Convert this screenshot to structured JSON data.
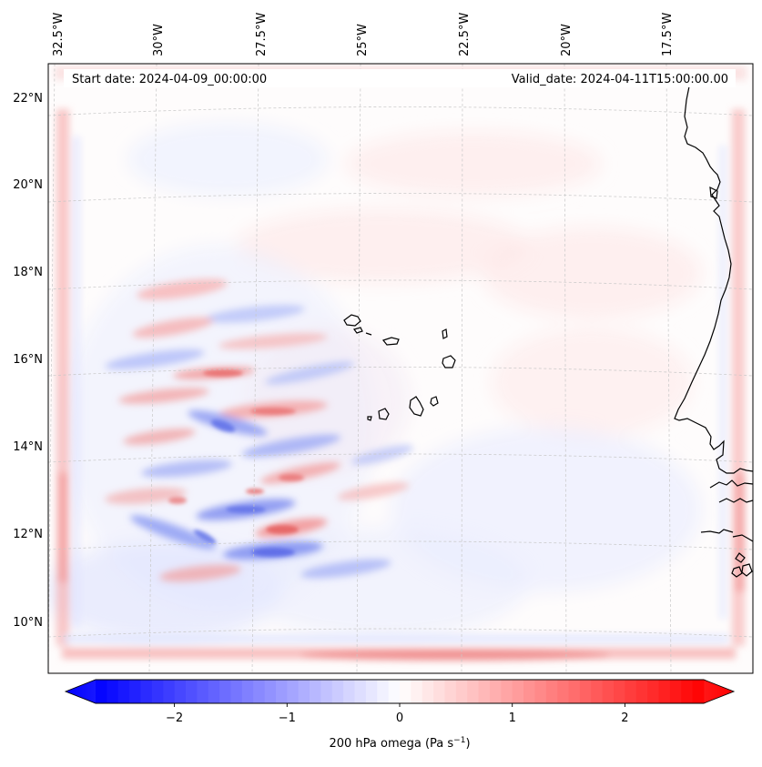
{
  "header": {
    "start_label": "Start date: 2024-04-09_00:00:00",
    "valid_label": "Valid_date: 2024-04-11T15:00:00.00"
  },
  "axes": {
    "lon_labels": [
      "32.5°W",
      "30°W",
      "27.5°W",
      "25°W",
      "22.5°W",
      "20°W",
      "17.5°W"
    ],
    "lat_labels": [
      "22°N",
      "20°N",
      "18°N",
      "16°N",
      "14°N",
      "12°N",
      "10°N"
    ]
  },
  "colorbar": {
    "label_main": "200 hPa omega (Pa s",
    "label_exp": "−1",
    "label_close": ")",
    "ticks": [
      "−2",
      "−1",
      "0",
      "1",
      "2"
    ],
    "tick_values": [
      -2,
      -1,
      0,
      1,
      2
    ],
    "vmin": -2.7,
    "vmax": 2.7,
    "colormap": "bwr",
    "negative_color": "#0000ff",
    "zero_color": "#ffffff",
    "positive_color": "#ff0000"
  },
  "map": {
    "coastline_color": "#000000",
    "grid_color": "#c8c8c8",
    "field_description": "omega"
  }
}
